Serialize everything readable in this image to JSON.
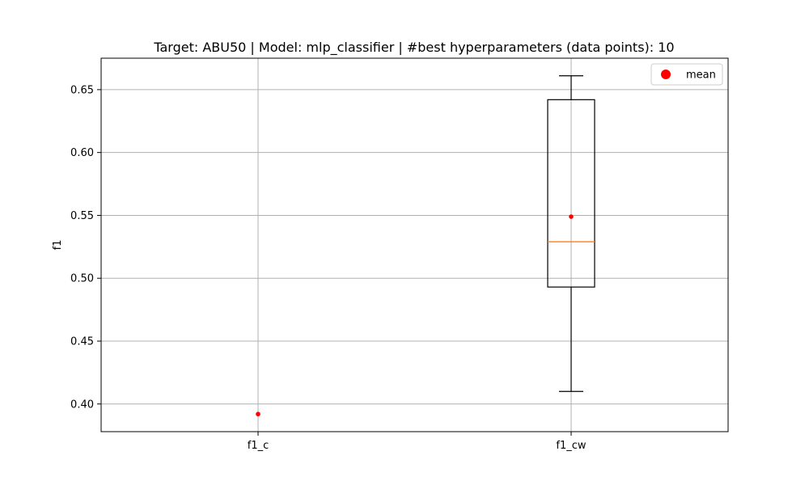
{
  "chart_data": {
    "type": "box",
    "title": "Target: ABU50 | Model: mlp_classifier | #best hyperparameters (data points): 10",
    "xlabel": "",
    "ylabel": "f1",
    "ylim": [
      0.378,
      0.675
    ],
    "yticks": [
      0.4,
      0.45,
      0.5,
      0.55,
      0.6,
      0.65
    ],
    "ytick_labels": [
      "0.40",
      "0.45",
      "0.50",
      "0.55",
      "0.60",
      "0.65"
    ],
    "grid": true,
    "legend": {
      "placement": "top-right",
      "entries": [
        {
          "label": "mean",
          "color": "#ff0000",
          "marker": "circle"
        }
      ]
    },
    "categories": [
      "f1_c",
      "f1_cw"
    ],
    "boxes": [
      {
        "name": "f1_c",
        "mean": 0.392,
        "has_box": false
      },
      {
        "name": "f1_cw",
        "has_box": true,
        "whisker_low": 0.41,
        "q1": 0.493,
        "median": 0.529,
        "q3": 0.642,
        "whisker_high": 0.661,
        "mean": 0.549
      }
    ],
    "colors": {
      "box": "#000000",
      "median": "#ff7f0e",
      "mean": "#ff0000",
      "grid": "#b0b0b0"
    }
  }
}
